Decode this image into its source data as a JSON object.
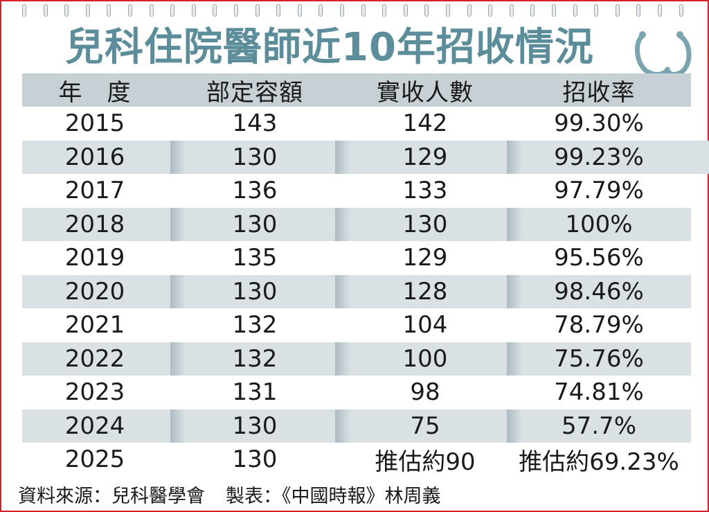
{
  "title": "兒科住院醫師近10年招收情況",
  "headers": [
    "年　度",
    "部定容額",
    "實收人數",
    "招收率"
  ],
  "rows": [
    [
      "2015",
      "143",
      "142",
      "99.30%"
    ],
    [
      "2016",
      "130",
      "129",
      "99.23%"
    ],
    [
      "2017",
      "136",
      "133",
      "97.79%"
    ],
    [
      "2018",
      "130",
      "130",
      "100%"
    ],
    [
      "2019",
      "135",
      "129",
      "95.56%"
    ],
    [
      "2020",
      "130",
      "128",
      "98.46%"
    ],
    [
      "2021",
      "132",
      "104",
      "78.79%"
    ],
    [
      "2022",
      "132",
      "100",
      "75.76%"
    ],
    [
      "2023",
      "131",
      "98",
      "74.81%"
    ],
    [
      "2024",
      "130",
      "75",
      "57.7%"
    ],
    [
      "2025",
      "130",
      "推估約90",
      "推估約69.23%"
    ]
  ],
  "source": "資料來源：兒科醫學會",
  "maker": "製表：《中國時報》林周義",
  "colors": {
    "frame": "#d8202a",
    "title": "#5b8e9a",
    "header_bg": "#c6d0d5",
    "shade_bg": "#d9e1e5",
    "stethoscope": "#7aa4b0"
  },
  "icons": [
    "stethoscope-icon",
    "spiral-binding-icon"
  ],
  "chart_data": {
    "type": "table",
    "columns": [
      "年　度",
      "部定容額",
      "實收人數",
      "招收率"
    ],
    "rows": [
      [
        "2015",
        143,
        142,
        "99.30%"
      ],
      [
        "2016",
        130,
        129,
        "99.23%"
      ],
      [
        "2017",
        136,
        133,
        "97.79%"
      ],
      [
        "2018",
        130,
        130,
        "100%"
      ],
      [
        "2019",
        135,
        129,
        "95.56%"
      ],
      [
        "2020",
        130,
        128,
        "98.46%"
      ],
      [
        "2021",
        132,
        104,
        "78.79%"
      ],
      [
        "2022",
        132,
        100,
        "75.76%"
      ],
      [
        "2023",
        131,
        98,
        "74.81%"
      ],
      [
        "2024",
        130,
        75,
        "57.7%"
      ],
      [
        "2025",
        130,
        "推估約90",
        "推估約69.23%"
      ]
    ],
    "title": "兒科住院醫師近10年招收情況"
  }
}
